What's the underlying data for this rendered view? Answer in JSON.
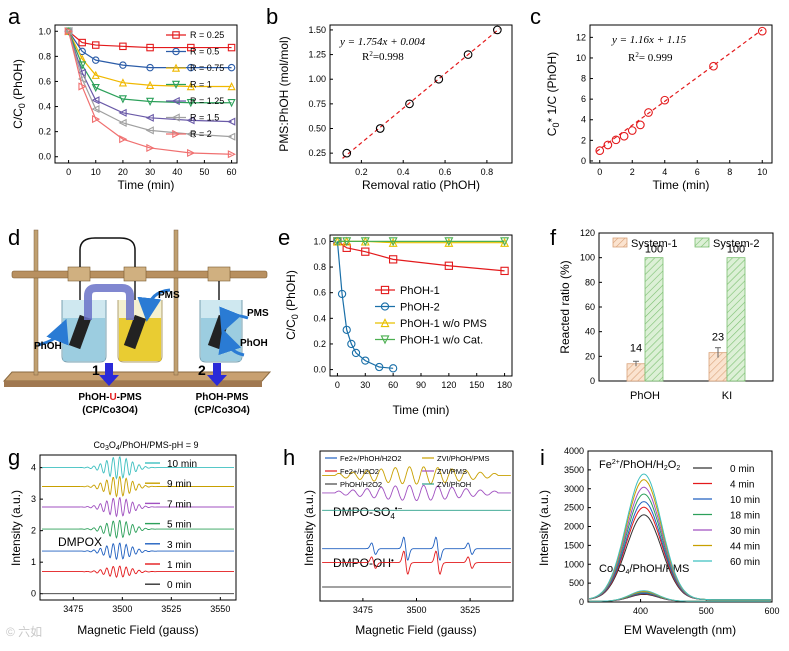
{
  "panel_letters": [
    "a",
    "b",
    "c",
    "d",
    "e",
    "f",
    "g",
    "h",
    "i"
  ],
  "watermark": "©  六如",
  "chart_data": [
    {
      "id": "a",
      "type": "line",
      "xlabel": "Time (min)",
      "ylabel": "C/C0 (PhOH)",
      "xlim": [
        -5,
        62
      ],
      "ylim": [
        -0.05,
        1.05
      ],
      "xticks": [
        0,
        10,
        20,
        30,
        40,
        50,
        60
      ],
      "yticks": [
        0.0,
        0.2,
        0.4,
        0.6,
        0.8,
        1.0
      ],
      "x": [
        0,
        5,
        10,
        20,
        30,
        45,
        60
      ],
      "series": [
        {
          "name": "R = 0.25",
          "color": "#e31a1c",
          "marker": "square",
          "values": [
            1.0,
            0.91,
            0.89,
            0.88,
            0.87,
            0.87,
            0.87
          ]
        },
        {
          "name": "R = 0.5",
          "color": "#2b5ca8",
          "marker": "circle",
          "values": [
            1.0,
            0.84,
            0.77,
            0.73,
            0.71,
            0.71,
            0.71
          ]
        },
        {
          "name": "R = 0.75",
          "color": "#f0b800",
          "marker": "triangle-up",
          "values": [
            1.0,
            0.78,
            0.65,
            0.59,
            0.57,
            0.56,
            0.56
          ]
        },
        {
          "name": "R = 1",
          "color": "#2ca05a",
          "marker": "triangle-down",
          "values": [
            1.0,
            0.73,
            0.55,
            0.46,
            0.44,
            0.43,
            0.43
          ]
        },
        {
          "name": "R = 1.25",
          "color": "#6a5aa8",
          "marker": "triangle-left",
          "values": [
            1.0,
            0.67,
            0.45,
            0.35,
            0.31,
            0.29,
            0.28
          ]
        },
        {
          "name": "R = 1.5",
          "color": "#a0a0a0",
          "marker": "triangle-left",
          "values": [
            1.0,
            0.62,
            0.38,
            0.27,
            0.21,
            0.18,
            0.16
          ]
        },
        {
          "name": "R = 2",
          "color": "#f07070",
          "marker": "triangle-right",
          "values": [
            1.0,
            0.56,
            0.3,
            0.14,
            0.07,
            0.03,
            0.02
          ]
        }
      ]
    },
    {
      "id": "b",
      "type": "scatter",
      "xlabel": "Removal ratio (PhOH)",
      "ylabel": "PMS:PhOH (mol/mol)",
      "xlim": [
        0.05,
        0.92
      ],
      "ylim": [
        0.15,
        1.55
      ],
      "xticks": [
        0.2,
        0.4,
        0.6,
        0.8
      ],
      "yticks": [
        0.25,
        0.5,
        0.75,
        1.0,
        1.25,
        1.5
      ],
      "x": [
        0.13,
        0.29,
        0.43,
        0.57,
        0.71,
        0.85
      ],
      "y": [
        0.25,
        0.5,
        0.75,
        1.0,
        1.25,
        1.5
      ],
      "fit_line": {
        "x0": 0.11,
        "x1": 0.86,
        "slope": 1.754,
        "intercept": 0.004
      },
      "equation": "y = 1.754x + 0.004",
      "r2": "R2=0.998",
      "color": "#000000",
      "fit_color": "#e31a1c"
    },
    {
      "id": "c",
      "type": "scatter",
      "xlabel": "Time (min)",
      "ylabel": "C0* 1/C (PhOH)",
      "xlim": [
        -0.6,
        10.6
      ],
      "ylim": [
        -0.2,
        13.2
      ],
      "xticks": [
        0,
        2,
        4,
        6,
        8,
        10
      ],
      "yticks": [
        0,
        2,
        4,
        6,
        8,
        10,
        12
      ],
      "x": [
        0,
        0.5,
        1,
        1.5,
        2,
        2.5,
        3,
        4,
        7,
        10
      ],
      "y": [
        1.0,
        1.55,
        2.05,
        2.4,
        2.95,
        3.5,
        4.7,
        5.9,
        9.2,
        12.6
      ],
      "fit_line": {
        "x0": -0.2,
        "x1": 10,
        "slope": 1.16,
        "intercept": 1.15
      },
      "equation": "y = 1.16x + 1.15",
      "r2": "R2= 0.999",
      "color": "#e31a1c",
      "fit_color": "#e31a1c"
    },
    {
      "id": "e",
      "type": "line",
      "xlabel": "Time (min)",
      "ylabel": "C/C0 (PhOH)",
      "xlim": [
        -8,
        188
      ],
      "ylim": [
        -0.05,
        1.05
      ],
      "xticks": [
        0,
        30,
        60,
        90,
        120,
        150,
        180
      ],
      "yticks": [
        0.0,
        0.2,
        0.4,
        0.6,
        0.8,
        1.0
      ],
      "series": [
        {
          "name": "PhOH-1",
          "color": "#e31a1c",
          "marker": "square",
          "x": [
            0,
            10,
            30,
            60,
            120,
            180
          ],
          "y": [
            1.0,
            0.95,
            0.92,
            0.86,
            0.81,
            0.77
          ]
        },
        {
          "name": "PhOH-2",
          "color": "#1a6fa8",
          "marker": "circle",
          "x": [
            0,
            5,
            10,
            15,
            20,
            30,
            45,
            60
          ],
          "y": [
            1.0,
            0.59,
            0.31,
            0.2,
            0.13,
            0.07,
            0.02,
            0.01
          ]
        },
        {
          "name": "PhOH-1   w/o PMS",
          "color": "#e8c000",
          "marker": "triangle-up",
          "x": [
            0,
            10,
            30,
            60,
            120,
            180
          ],
          "y": [
            1.0,
            1.0,
            1.0,
            0.99,
            0.99,
            0.99
          ]
        },
        {
          "name": "PhOH-1   w/o Cat.",
          "color": "#4caf50",
          "marker": "triangle-down",
          "x": [
            0,
            10,
            30,
            60,
            120,
            180
          ],
          "y": [
            1.0,
            1.0,
            1.0,
            1.0,
            1.0,
            1.0
          ]
        }
      ]
    },
    {
      "id": "f",
      "type": "bar",
      "ylabel": "Reacted ratio (%)",
      "ylim": [
        0,
        120
      ],
      "yticks": [
        0,
        20,
        40,
        60,
        80,
        100,
        120
      ],
      "categories": [
        "PhOH",
        "KI"
      ],
      "series": [
        {
          "name": "System-1",
          "color": "#f5cba7",
          "values": [
            14,
            23
          ],
          "labels": [
            "14",
            "23"
          ],
          "errors": [
            2,
            4
          ]
        },
        {
          "name": "System-2",
          "color": "#b8e0b0",
          "values": [
            100,
            100
          ],
          "labels": [
            "100",
            "100"
          ],
          "errors": [
            0,
            0
          ]
        }
      ]
    },
    {
      "id": "g",
      "type": "line",
      "title": "Co3O4/PhOH/PMS-pH = 9",
      "xlabel": "Magnetic Field (gauss)",
      "ylabel": "Intensity (a.u.)",
      "xlim": [
        3458,
        3558
      ],
      "xticks": [
        3475,
        3500,
        3525,
        3550
      ],
      "yticks": [
        0,
        1,
        2,
        3,
        4
      ],
      "ylim": [
        -0.2,
        4.4
      ],
      "annotation": "DMPOX",
      "series": [
        {
          "name": "10 min",
          "color": "#3fc0c0",
          "offset": 4.0,
          "amp": 0.35
        },
        {
          "name": "9 min",
          "color": "#c8a000",
          "offset": 3.4,
          "amp": 0.32
        },
        {
          "name": "7 min",
          "color": "#a050c0",
          "offset": 2.75,
          "amp": 0.3
        },
        {
          "name": "5 min",
          "color": "#2ca05a",
          "offset": 2.05,
          "amp": 0.28
        },
        {
          "name": "3 min",
          "color": "#2060c0",
          "offset": 1.35,
          "amp": 0.26
        },
        {
          "name": "1 min",
          "color": "#e31a1c",
          "offset": 0.7,
          "amp": 0.18
        },
        {
          "name": "0 min",
          "color": "#333333",
          "offset": 0.0,
          "amp": 0.0
        }
      ]
    },
    {
      "id": "h",
      "type": "line",
      "xlabel": "Magnetic Field (gauss)",
      "ylabel": "Intensity (a.u.)",
      "xlim": [
        3455,
        3545
      ],
      "xticks": [
        3475,
        3500,
        3525
      ],
      "annotations": [
        "DMPO-SO4•−",
        "DMPO-OH•"
      ],
      "series": [
        {
          "name": "Fe2+/PhOH/H2O2",
          "color": "#2060c0",
          "offset": 1.1,
          "kind": "oh",
          "amp": 0.35
        },
        {
          "name": "Fe2+/H2O2",
          "color": "#e31a1c",
          "offset": 0.7,
          "kind": "oh",
          "amp": 0.35
        },
        {
          "name": "PhOH/H2O2",
          "color": "#444444",
          "offset": 0.0,
          "kind": "flat",
          "amp": 0.0
        },
        {
          "name": "ZVI/PhOH/PMS",
          "color": "#c8a000",
          "offset": 3.2,
          "kind": "so4",
          "amp": 0.25
        },
        {
          "name": "ZVI/PMS",
          "color": "#a050c0",
          "offset": 2.7,
          "kind": "so4",
          "amp": 0.22
        },
        {
          "name": "ZVI/PhOH",
          "color": "#2ca08a",
          "offset": 2.2,
          "kind": "flat",
          "amp": 0.0
        }
      ]
    },
    {
      "id": "i",
      "type": "line",
      "xlabel": "EM Wavelength (nm)",
      "ylabel": "Intensity (a.u.)",
      "xlim": [
        320,
        600
      ],
      "ylim": [
        0,
        4000
      ],
      "xticks": [
        400,
        500,
        600
      ],
      "yticks": [
        0,
        500,
        1000,
        1500,
        2000,
        2500,
        3000,
        3500,
        4000
      ],
      "annotations": [
        "Fe2+/PhOH/H2O2",
        "Co3O4/PhOH/PMS"
      ],
      "peak_nm": 405,
      "series": [
        {
          "name": "0 min",
          "color": "#333333",
          "peak": 2250
        },
        {
          "name": "4 min",
          "color": "#e31a1c",
          "peak": 2450
        },
        {
          "name": "10 min",
          "color": "#2060c0",
          "peak": 2600
        },
        {
          "name": "18 min",
          "color": "#2ca05a",
          "peak": 2800
        },
        {
          "name": "30 min",
          "color": "#a050c0",
          "peak": 2980
        },
        {
          "name": "44 min",
          "color": "#c8a000",
          "peak": 3180
        },
        {
          "name": "60 min",
          "color": "#3fc0c0",
          "peak": 3330
        }
      ],
      "lower_peaks": [
        180,
        200,
        210,
        230,
        250,
        260,
        280
      ]
    }
  ],
  "schematic": {
    "pms_left": "PMS",
    "phoh_left": "PhOH",
    "pms_right": "PMS",
    "phoh_right": "PhOH",
    "step1_num": "1",
    "step2_num": "2",
    "label1_a": "PhOH-",
    "label1_u": "U",
    "label1_b": "-PMS",
    "label1_sub": "(CP/Co3O4)",
    "label2": "PhOH-PMS",
    "label2_sub": "(CP/Co3O4)"
  }
}
